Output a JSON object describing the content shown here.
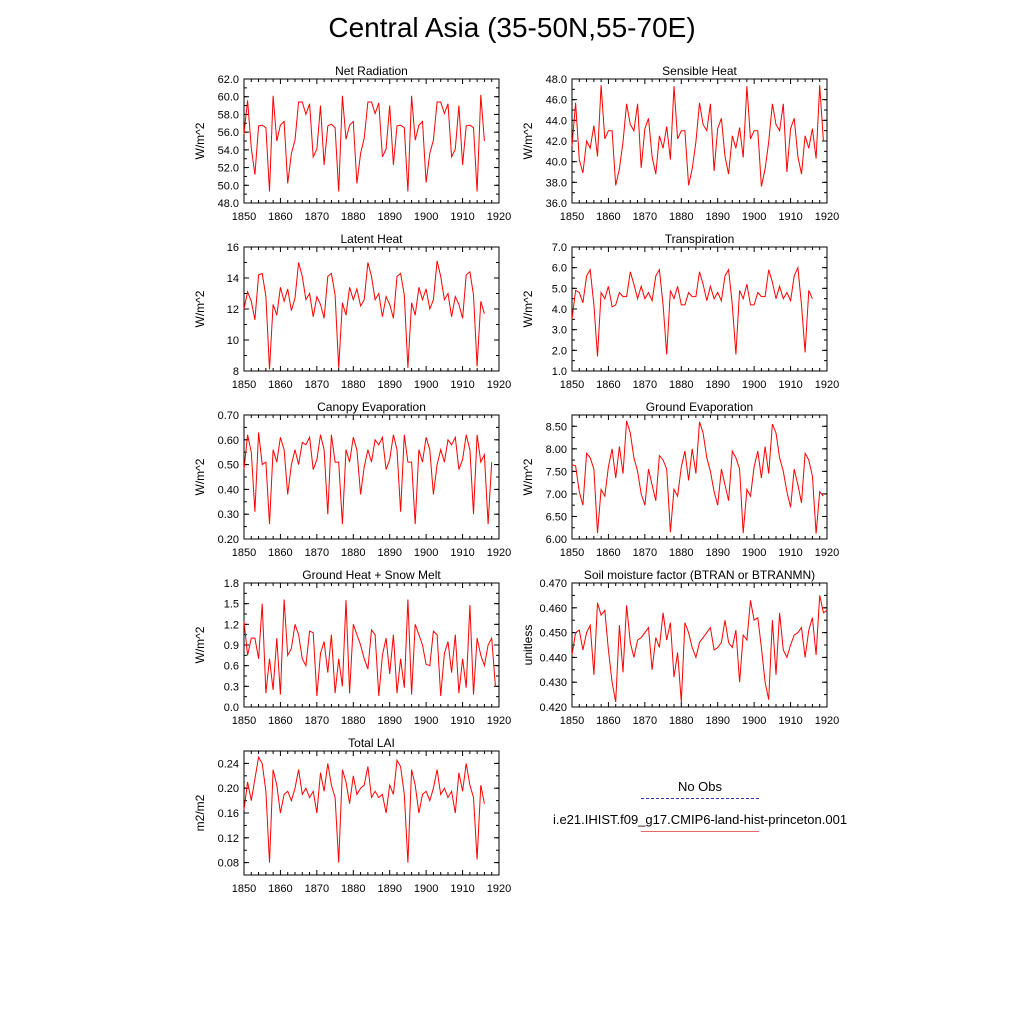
{
  "figure": {
    "title": "Central Asia (35-50N,55-70E)"
  },
  "legend": {
    "entries": [
      {
        "label": "No Obs",
        "color": "#3333aa",
        "style": "dashed"
      },
      {
        "label": "i.e21.IHIST.f09_g17.CMIP6-land-hist-princeton.001",
        "color": "#ee6666",
        "style": "solid"
      }
    ]
  },
  "chart_data": [
    {
      "type": "line",
      "title": "Net Radiation",
      "ylabel": "W/m^2",
      "xlim": [
        1850,
        1920
      ],
      "xticks": [
        1850,
        1860,
        1870,
        1880,
        1890,
        1900,
        1910,
        1920
      ],
      "ylim": [
        48,
        62
      ],
      "yticks": [
        "62.0",
        "60.0",
        "58.0",
        "56.0",
        "54.0",
        "52.0",
        "50.0",
        "48.0"
      ],
      "series": [
        {
          "color": "#ff0000",
          "x_start": 1850,
          "values": [
            55.8,
            59.6,
            54.2,
            51.2,
            56.7,
            56.8,
            56.5,
            49.3,
            60.1,
            55.0,
            56.8,
            57.2,
            50.2,
            53.6,
            55.1,
            59.4,
            59.4,
            58.0,
            59.2,
            53.2,
            54.1,
            59.0,
            52.3,
            56.7,
            56.9,
            56.5,
            49.3,
            60.1,
            55.2,
            56.8,
            57.2,
            50.2,
            53.6,
            55.3,
            59.4,
            59.4,
            58.1,
            59.3,
            53.2,
            54.1,
            59.0,
            52.3,
            56.7,
            56.8,
            56.5,
            49.3,
            60.1,
            55.1,
            56.8,
            57.2,
            50.3,
            53.6,
            55.1,
            59.4,
            59.4,
            58.1,
            59.2,
            53.2,
            54.1,
            59.0,
            52.3,
            56.7,
            56.8,
            56.5,
            49.3,
            60.2,
            55.0
          ]
        }
      ]
    },
    {
      "type": "line",
      "title": "Sensible Heat",
      "ylabel": "W/m^2",
      "xlim": [
        1850,
        1920
      ],
      "xticks": [
        1850,
        1860,
        1870,
        1880,
        1890,
        1900,
        1910,
        1920
      ],
      "ylim": [
        36,
        48
      ],
      "yticks": [
        "48.0",
        "46.0",
        "44.0",
        "42.0",
        "40.0",
        "38.0",
        "36.0"
      ],
      "series": [
        {
          "color": "#ff0000",
          "x_start": 1850,
          "values": [
            41.5,
            45.7,
            40.2,
            38.9,
            42.0,
            41.3,
            43.5,
            40.5,
            47.4,
            42.2,
            43.0,
            43.0,
            37.7,
            39.3,
            41.9,
            45.6,
            43.6,
            43.0,
            45.6,
            39.4,
            43.2,
            44.2,
            40.5,
            38.8,
            42.5,
            41.3,
            43.4,
            40.2,
            47.3,
            42.2,
            43.0,
            43.0,
            37.7,
            39.3,
            41.9,
            45.7,
            43.6,
            43.0,
            45.6,
            39.1,
            43.2,
            44.2,
            40.5,
            38.8,
            42.5,
            41.3,
            43.3,
            40.4,
            47.3,
            42.2,
            43.0,
            43.0,
            37.6,
            39.3,
            41.9,
            45.6,
            43.6,
            43.0,
            45.6,
            39.0,
            43.2,
            44.2,
            40.5,
            38.8,
            42.5,
            41.3,
            43.2,
            40.3,
            47.4,
            42.0
          ]
        }
      ]
    },
    {
      "type": "line",
      "title": "Latent Heat",
      "ylabel": "W/m^2",
      "xlim": [
        1850,
        1920
      ],
      "xticks": [
        1850,
        1860,
        1870,
        1880,
        1890,
        1900,
        1910,
        1920
      ],
      "ylim": [
        8,
        16
      ],
      "yticks": [
        "16",
        "14",
        "12",
        "10",
        "8"
      ],
      "series": [
        {
          "color": "#ff0000",
          "x_start": 1850,
          "values": [
            12.0,
            13.1,
            12.5,
            11.3,
            14.2,
            14.3,
            12.8,
            8.1,
            12.3,
            11.6,
            13.4,
            12.5,
            13.3,
            11.9,
            12.7,
            15.0,
            14.1,
            12.6,
            13.0,
            11.5,
            12.8,
            12.3,
            11.4,
            14.1,
            14.3,
            12.9,
            8.2,
            12.4,
            11.6,
            13.4,
            12.6,
            13.3,
            12.2,
            12.6,
            15.0,
            14.1,
            12.6,
            13.0,
            11.5,
            12.8,
            12.3,
            11.4,
            14.1,
            14.3,
            12.9,
            8.2,
            12.4,
            11.6,
            13.4,
            12.6,
            13.3,
            12.0,
            12.6,
            15.1,
            14.1,
            12.6,
            13.0,
            11.5,
            12.8,
            12.3,
            11.4,
            14.2,
            14.4,
            12.9,
            8.3,
            12.5,
            11.7
          ]
        }
      ]
    },
    {
      "type": "line",
      "title": "Transpiration",
      "ylabel": "W/m^2",
      "xlim": [
        1850,
        1920
      ],
      "xticks": [
        1850,
        1860,
        1870,
        1880,
        1890,
        1900,
        1910,
        1920
      ],
      "ylim": [
        1,
        7
      ],
      "yticks": [
        "7.0",
        "6.0",
        "5.0",
        "4.0",
        "3.0",
        "2.0",
        "1.0"
      ],
      "series": [
        {
          "color": "#ff0000",
          "x_start": 1850,
          "values": [
            3.5,
            4.9,
            4.8,
            4.3,
            5.6,
            5.9,
            4.2,
            1.7,
            4.8,
            4.5,
            5.1,
            4.1,
            4.2,
            4.8,
            4.6,
            4.6,
            5.8,
            5.2,
            4.5,
            5.1,
            4.5,
            4.8,
            4.4,
            5.6,
            5.9,
            4.2,
            1.8,
            4.9,
            4.5,
            5.1,
            4.2,
            4.2,
            4.8,
            4.6,
            4.6,
            5.8,
            5.2,
            4.4,
            5.1,
            4.5,
            4.8,
            4.4,
            5.6,
            5.9,
            4.2,
            1.8,
            4.9,
            4.5,
            5.2,
            4.2,
            4.2,
            4.8,
            4.6,
            4.6,
            5.9,
            5.3,
            4.5,
            5.1,
            4.5,
            4.8,
            4.4,
            5.6,
            6.0,
            4.2,
            1.9,
            4.9,
            4.5
          ]
        }
      ]
    },
    {
      "type": "line",
      "title": "Canopy Evaporation",
      "ylabel": "W/m^2",
      "xlim": [
        1850,
        1920
      ],
      "xticks": [
        1850,
        1860,
        1870,
        1880,
        1890,
        1900,
        1910,
        1920
      ],
      "ylim": [
        0.2,
        0.7
      ],
      "yticks": [
        "0.70",
        "0.60",
        "0.50",
        "0.40",
        "0.30",
        "0.20"
      ],
      "series": [
        {
          "color": "#ff0000",
          "x_start": 1850,
          "values": [
            0.48,
            0.62,
            0.55,
            0.31,
            0.63,
            0.5,
            0.51,
            0.26,
            0.56,
            0.51,
            0.61,
            0.56,
            0.38,
            0.5,
            0.56,
            0.5,
            0.59,
            0.58,
            0.61,
            0.48,
            0.52,
            0.62,
            0.56,
            0.3,
            0.62,
            0.51,
            0.51,
            0.26,
            0.56,
            0.51,
            0.61,
            0.56,
            0.38,
            0.49,
            0.56,
            0.51,
            0.6,
            0.58,
            0.61,
            0.48,
            0.52,
            0.62,
            0.56,
            0.31,
            0.62,
            0.51,
            0.51,
            0.26,
            0.56,
            0.51,
            0.61,
            0.56,
            0.38,
            0.5,
            0.56,
            0.51,
            0.6,
            0.58,
            0.61,
            0.48,
            0.52,
            0.62,
            0.56,
            0.3,
            0.62,
            0.51,
            0.54,
            0.26,
            0.51
          ]
        }
      ]
    },
    {
      "type": "line",
      "title": "Ground Evaporation",
      "ylabel": "W/m^2",
      "xlim": [
        1850,
        1920
      ],
      "xticks": [
        1850,
        1860,
        1870,
        1880,
        1890,
        1900,
        1910,
        1920
      ],
      "ylim": [
        6.0,
        8.75
      ],
      "yticks": [
        "8.50",
        "8.00",
        "7.50",
        "7.00",
        "6.50",
        "6.00"
      ],
      "series": [
        {
          "color": "#ff0000",
          "x_start": 1850,
          "values": [
            7.65,
            7.62,
            7.05,
            6.75,
            7.9,
            7.8,
            7.55,
            6.13,
            7.1,
            6.95,
            7.6,
            8.0,
            7.35,
            8.05,
            7.45,
            8.62,
            8.35,
            7.8,
            7.5,
            7.0,
            6.75,
            7.55,
            7.2,
            6.85,
            7.85,
            7.75,
            7.55,
            6.15,
            7.1,
            6.95,
            7.6,
            7.95,
            7.3,
            8.0,
            7.45,
            8.6,
            8.35,
            7.8,
            7.5,
            7.05,
            6.75,
            7.55,
            7.2,
            6.85,
            7.95,
            7.8,
            7.55,
            6.13,
            7.1,
            6.95,
            7.6,
            7.95,
            7.35,
            8.05,
            7.45,
            8.55,
            8.35,
            7.8,
            7.5,
            7.05,
            6.7,
            7.55,
            7.2,
            6.8,
            7.9,
            7.75,
            7.4,
            6.12,
            7.05,
            6.95
          ]
        }
      ]
    },
    {
      "type": "line",
      "title": "Ground Heat + Snow Melt",
      "ylabel": "W/m^2",
      "xlim": [
        1850,
        1920
      ],
      "xticks": [
        1850,
        1860,
        1870,
        1880,
        1890,
        1900,
        1910,
        1920
      ],
      "ylim": [
        0.0,
        1.8
      ],
      "yticks": [
        "1.8",
        "1.5",
        "1.2",
        "0.9",
        "0.6",
        "0.3",
        "0.0"
      ],
      "series": [
        {
          "color": "#ff0000",
          "x_start": 1850,
          "values": [
            1.25,
            0.75,
            1.0,
            1.0,
            0.7,
            1.5,
            0.2,
            0.7,
            0.25,
            1.0,
            0.18,
            1.56,
            0.75,
            0.85,
            1.2,
            1.05,
            0.7,
            0.6,
            1.1,
            1.08,
            0.16,
            0.78,
            0.95,
            0.5,
            1.05,
            0.2,
            0.7,
            0.3,
            1.55,
            0.2,
            1.2,
            1.05,
            0.9,
            0.7,
            0.55,
            1.12,
            1.05,
            0.16,
            0.75,
            1.0,
            0.48,
            1.05,
            0.2,
            0.7,
            0.28,
            1.56,
            0.18,
            1.2,
            1.05,
            0.9,
            0.62,
            0.6,
            1.1,
            1.05,
            0.16,
            0.78,
            0.95,
            0.5,
            1.05,
            0.2,
            0.7,
            0.28,
            1.48,
            0.18,
            1.0,
            0.75,
            0.6,
            0.9,
            1.0,
            0.3
          ]
        }
      ]
    },
    {
      "type": "line",
      "title": "Soil moisture factor (BTRAN or BTRANMN)",
      "ylabel": "unitless",
      "xlim": [
        1850,
        1920
      ],
      "xticks": [
        1850,
        1860,
        1870,
        1880,
        1890,
        1900,
        1910,
        1920
      ],
      "ylim": [
        0.42,
        0.47
      ],
      "yticks": [
        "0.470",
        "0.460",
        "0.450",
        "0.440",
        "0.430",
        "0.420"
      ],
      "series": [
        {
          "color": "#ff0000",
          "x_start": 1850,
          "values": [
            0.441,
            0.45,
            0.451,
            0.443,
            0.45,
            0.453,
            0.433,
            0.462,
            0.457,
            0.459,
            0.443,
            0.43,
            0.422,
            0.453,
            0.434,
            0.461,
            0.446,
            0.44,
            0.447,
            0.448,
            0.45,
            0.452,
            0.435,
            0.448,
            0.444,
            0.458,
            0.447,
            0.454,
            0.432,
            0.442,
            0.422,
            0.454,
            0.45,
            0.444,
            0.44,
            0.446,
            0.448,
            0.45,
            0.452,
            0.443,
            0.444,
            0.446,
            0.455,
            0.446,
            0.444,
            0.451,
            0.43,
            0.449,
            0.447,
            0.463,
            0.455,
            0.456,
            0.444,
            0.43,
            0.423,
            0.455,
            0.433,
            0.458,
            0.443,
            0.44,
            0.445,
            0.449,
            0.45,
            0.452,
            0.44,
            0.451,
            0.456,
            0.441,
            0.465,
            0.458,
            0.459
          ]
        }
      ]
    },
    {
      "type": "line",
      "title": "Total LAI",
      "ylabel": "m2/m2",
      "xlim": [
        1850,
        1920
      ],
      "xticks": [
        1850,
        1860,
        1870,
        1880,
        1890,
        1900,
        1910,
        1920
      ],
      "ylim": [
        0.06,
        0.26
      ],
      "yticks": [
        "0.24",
        "0.20",
        "0.16",
        "0.12",
        "0.08"
      ],
      "series": [
        {
          "color": "#ff0000",
          "x_start": 1850,
          "values": [
            0.165,
            0.21,
            0.18,
            0.215,
            0.25,
            0.24,
            0.195,
            0.08,
            0.23,
            0.205,
            0.16,
            0.19,
            0.195,
            0.18,
            0.2,
            0.23,
            0.19,
            0.2,
            0.185,
            0.195,
            0.16,
            0.225,
            0.195,
            0.24,
            0.205,
            0.185,
            0.08,
            0.23,
            0.21,
            0.175,
            0.22,
            0.19,
            0.2,
            0.205,
            0.235,
            0.185,
            0.195,
            0.185,
            0.19,
            0.16,
            0.205,
            0.19,
            0.245,
            0.235,
            0.19,
            0.08,
            0.23,
            0.205,
            0.16,
            0.19,
            0.195,
            0.18,
            0.2,
            0.23,
            0.19,
            0.2,
            0.185,
            0.195,
            0.16,
            0.225,
            0.195,
            0.24,
            0.205,
            0.185,
            0.085,
            0.205,
            0.175
          ]
        }
      ]
    }
  ]
}
